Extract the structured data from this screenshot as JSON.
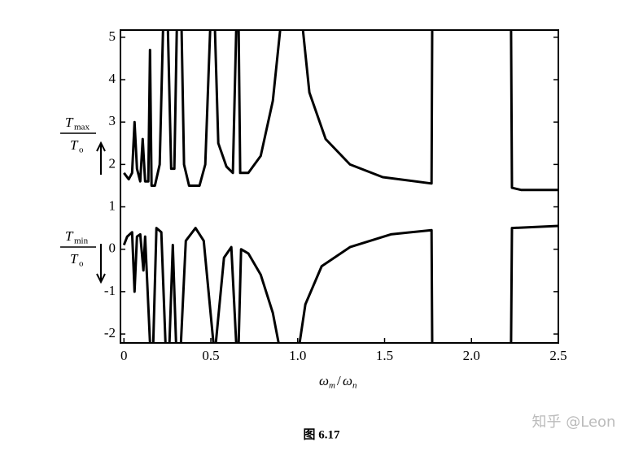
{
  "chart_data": {
    "type": "line",
    "xlim": [
      -0.02,
      2.5
    ],
    "ylim": [
      -2.21,
      5.17
    ],
    "xticks": [
      0,
      0.5,
      {
        "value": 1,
        "label": "1.0"
      },
      1.5,
      {
        "value": 2,
        "label": "2.0"
      },
      2.5
    ],
    "yticks": [
      5,
      4,
      3,
      2,
      1,
      0,
      -1,
      -2
    ],
    "y_label_upper": {
      "num": "T",
      "num_sub": "max",
      "den": "T",
      "den_sub": "o"
    },
    "y_label_lower": {
      "num": "T",
      "num_sub": "min",
      "den": "T",
      "den_sub": "o"
    },
    "x_label": {
      "num": "ω",
      "num_sub": "m",
      "sep": "/",
      "den": "ω",
      "den_sub": "n"
    },
    "caption": "图 6.17",
    "watermark": "知乎 @Leon",
    "series": [
      {
        "color": "#000000",
        "x": [
          0,
          0.028,
          0.047,
          0.061,
          0.075,
          0.094,
          0.108,
          0.122,
          0.14,
          0.15,
          0.159,
          0.178,
          0.206,
          0.225,
          null,
          0.253,
          0.272,
          0.29,
          0.304,
          null,
          0.332,
          0.346,
          0.375,
          0.435,
          0.468,
          0.496,
          null,
          0.524,
          0.543,
          0.59,
          0.627,
          0.646,
          null,
          0.66,
          0.669,
          0.716,
          0.787,
          0.857,
          0.899,
          null,
          1.03,
          1.067,
          1.161,
          1.301,
          1.489,
          1.77,
          1.774,
          null,
          2.228,
          2.233,
          2.285,
          2.5
        ],
        "values": [
          1.8,
          1.65,
          1.8,
          3.0,
          1.9,
          1.6,
          2.6,
          1.6,
          1.6,
          4.7,
          1.5,
          1.5,
          2.0,
          5.17,
          null,
          5.17,
          1.9,
          1.9,
          5.17,
          null,
          5.17,
          2.0,
          1.5,
          1.5,
          2.0,
          5.17,
          null,
          5.17,
          2.5,
          1.95,
          1.8,
          5.17,
          null,
          5.17,
          1.8,
          1.8,
          2.2,
          3.5,
          5.17,
          null,
          5.17,
          3.7,
          2.6,
          2.0,
          1.7,
          1.55,
          5.17,
          null,
          5.17,
          1.45,
          1.4,
          1.4
        ]
      },
      {
        "color": "#000000",
        "x": [
          0,
          0.019,
          0.047,
          0.061,
          0.075,
          0.094,
          0.112,
          0.122,
          0.15,
          null,
          0.169,
          0.187,
          0.215,
          0.239,
          null,
          0.262,
          0.281,
          0.3,
          null,
          0.328,
          0.356,
          0.412,
          0.459,
          0.515,
          null,
          0.529,
          0.576,
          0.618,
          0.646,
          null,
          0.66,
          0.674,
          0.716,
          0.787,
          0.857,
          0.89,
          null,
          1.011,
          1.044,
          1.138,
          1.301,
          1.536,
          1.77,
          1.774,
          null,
          2.228,
          2.233,
          2.5
        ],
        "values": [
          0.1,
          0.3,
          0.4,
          -1.0,
          0.3,
          0.35,
          -0.5,
          0.3,
          -2.21,
          null,
          -2.21,
          0.5,
          0.4,
          -2.21,
          null,
          -2.21,
          0.1,
          -2.21,
          null,
          -2.21,
          0.2,
          0.5,
          0.2,
          -2.21,
          null,
          -2.21,
          -0.2,
          0.05,
          -2.21,
          null,
          -2.21,
          0.0,
          -0.1,
          -0.6,
          -1.5,
          -2.21,
          null,
          -2.21,
          -1.3,
          -0.4,
          0.05,
          0.35,
          0.45,
          -2.21,
          null,
          -2.21,
          0.5,
          0.55
        ]
      }
    ]
  }
}
